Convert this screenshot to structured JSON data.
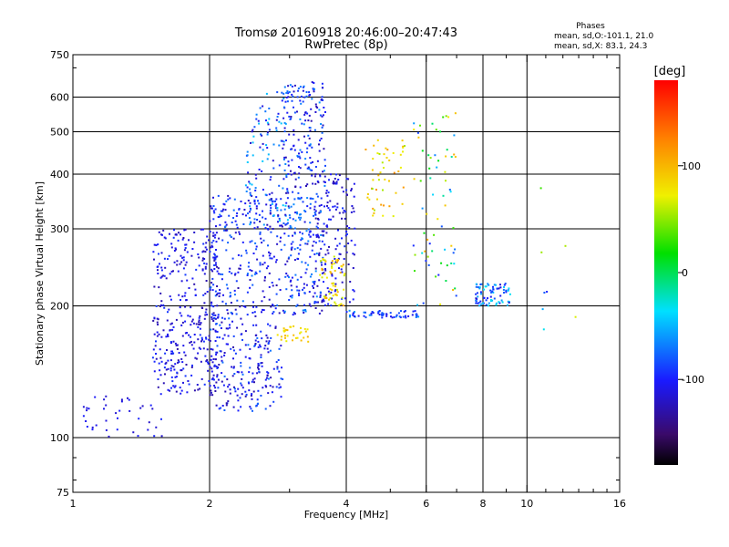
{
  "chart_data": {
    "type": "scatter",
    "title": "Tromsø 20160918 20:46:00–20:47:43",
    "subtitle": "RwPretec (8p)",
    "xlabel": "Frequency [MHz]",
    "ylabel": "Stationary phase Virtual Height [km]",
    "x_scale": "log",
    "y_scale": "log",
    "xlim": [
      1,
      16
    ],
    "ylim": [
      75,
      750
    ],
    "x_ticks": [
      1,
      2,
      4,
      6,
      8,
      10,
      16
    ],
    "x_tick_labels": [
      "1",
      "2",
      "4",
      "6",
      "8",
      "10",
      "16"
    ],
    "x_grid": [
      2,
      4,
      6,
      8,
      10
    ],
    "y_ticks": [
      75,
      100,
      200,
      300,
      400,
      500,
      600,
      750
    ],
    "y_tick_labels": [
      "75",
      "100",
      "200",
      "300",
      "400",
      "500",
      "600",
      "750"
    ],
    "y_grid": [
      100,
      200,
      300,
      400,
      500,
      600
    ],
    "grid": true,
    "legend": {
      "heading": "Phases",
      "line1": "mean, sd,O:-101.1, 21.0",
      "line2": "mean, sd,X:  83.1, 24.3",
      "placement": "top-right"
    },
    "colorbar": {
      "label": "[deg]",
      "range": [
        -180,
        180
      ],
      "ticks": [
        100,
        0,
        -100
      ],
      "tick_labels": [
        "100",
        "0",
        "-100"
      ],
      "colormap": "rainbow-black-to-red"
    },
    "clusters": [
      {
        "x": [
          1.05,
          1.6
        ],
        "y": [
          100,
          125
        ],
        "phase": [
          -120,
          -95
        ],
        "n": 40
      },
      {
        "x": [
          1.5,
          2.1
        ],
        "y": [
          125,
          300
        ],
        "phase": [
          -130,
          -90
        ],
        "n": 380
      },
      {
        "x": [
          2.0,
          2.9
        ],
        "y": [
          115,
          360
        ],
        "phase": [
          -130,
          -70
        ],
        "n": 480
      },
      {
        "x": [
          2.4,
          3.0
        ],
        "y": [
          300,
          620
        ],
        "phase": [
          -120,
          -40
        ],
        "n": 120
      },
      {
        "x": [
          2.9,
          3.6
        ],
        "y": [
          190,
          650
        ],
        "phase": [
          -130,
          -60
        ],
        "n": 380
      },
      {
        "x": [
          3.4,
          4.2
        ],
        "y": [
          200,
          400
        ],
        "phase": [
          -130,
          -90
        ],
        "n": 150
      },
      {
        "x": [
          3.5,
          4.0
        ],
        "y": [
          200,
          260
        ],
        "phase": [
          60,
          110
        ],
        "n": 60
      },
      {
        "x": [
          2.8,
          3.3
        ],
        "y": [
          165,
          180
        ],
        "phase": [
          70,
          100
        ],
        "n": 30
      },
      {
        "x": [
          4.0,
          5.8
        ],
        "y": [
          188,
          195
        ],
        "phase": [
          -110,
          -60
        ],
        "n": 60
      },
      {
        "x": [
          4.4,
          5.4
        ],
        "y": [
          320,
          480
        ],
        "phase": [
          50,
          120
        ],
        "n": 50
      },
      {
        "x": [
          5.6,
          7.0
        ],
        "y": [
          200,
          560
        ],
        "phase": [
          -100,
          110
        ],
        "n": 70
      },
      {
        "x": [
          7.7,
          9.2
        ],
        "y": [
          200,
          225
        ],
        "phase": [
          -120,
          -30
        ],
        "n": 80
      },
      {
        "x": [
          9.0,
          13.0
        ],
        "y": [
          170,
          380
        ],
        "phase": [
          -120,
          70
        ],
        "n": 8
      }
    ]
  }
}
